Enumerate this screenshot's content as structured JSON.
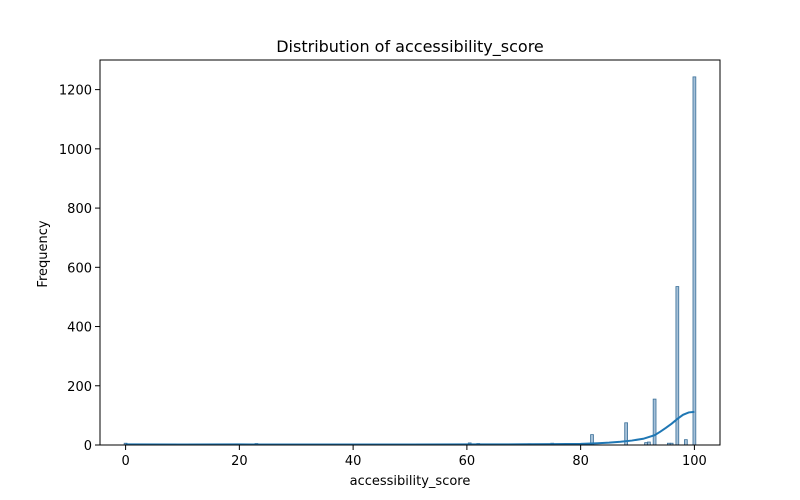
{
  "chart_data": {
    "type": "bar",
    "title": "Distribution of accessibility_score",
    "xlabel": "accessibility_score",
    "ylabel": "Frequency",
    "xlim": [
      -4.5,
      104.5
    ],
    "ylim": [
      0,
      1300
    ],
    "xticks": [
      0,
      20,
      40,
      60,
      80,
      100
    ],
    "yticks": [
      0,
      200,
      400,
      600,
      800,
      1000,
      1200
    ],
    "grid": false,
    "legend": "none",
    "bar_color": "#5b8db8",
    "bar_width": 0.5,
    "kde_color": "#1f77b4",
    "bins": [
      {
        "x": 0,
        "count": 6
      },
      {
        "x": 23,
        "count": 5
      },
      {
        "x": 60.5,
        "count": 7
      },
      {
        "x": 62,
        "count": 5
      },
      {
        "x": 71,
        "count": 4
      },
      {
        "x": 75,
        "count": 6
      },
      {
        "x": 82,
        "count": 35
      },
      {
        "x": 88,
        "count": 75
      },
      {
        "x": 91.5,
        "count": 8
      },
      {
        "x": 92,
        "count": 10
      },
      {
        "x": 93,
        "count": 155
      },
      {
        "x": 95.5,
        "count": 6
      },
      {
        "x": 96,
        "count": 6
      },
      {
        "x": 97,
        "count": 535
      },
      {
        "x": 98.5,
        "count": 18
      },
      {
        "x": 100,
        "count": 1243
      }
    ],
    "kde": {
      "x": [
        0,
        10,
        20,
        30,
        40,
        50,
        60,
        65,
        70,
        75,
        80,
        83,
        85,
        87,
        89,
        91,
        93,
        94,
        95,
        96,
        97,
        98,
        99,
        100
      ],
      "y": [
        2,
        1.5,
        2,
        1.5,
        1.5,
        1.5,
        2,
        2,
        2.5,
        3,
        4,
        6,
        8,
        11,
        15,
        21,
        33,
        45,
        58,
        72,
        88,
        102,
        110,
        112
      ]
    }
  }
}
